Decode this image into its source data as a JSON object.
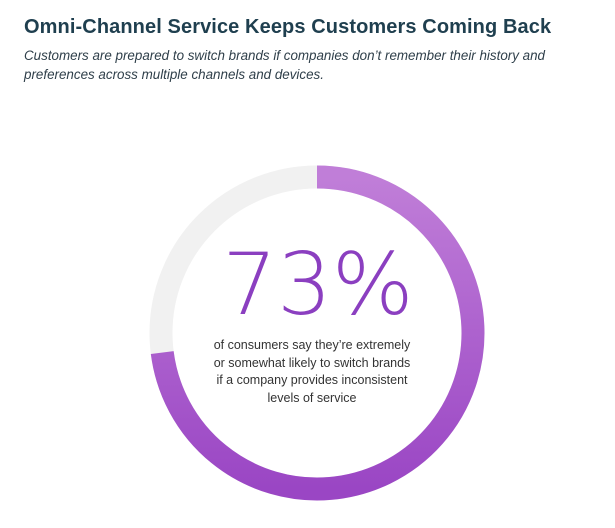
{
  "header": {
    "title": "Omni-Channel Service Keeps Customers Coming Back",
    "subtitle": "Customers are prepared to switch brands if companies don’t remember their history and preferences across multiple channels and devices."
  },
  "chart_data": {
    "type": "pie",
    "values": [
      73,
      27
    ],
    "value_label": "73%",
    "caption": "of consumers say they’re extremely or somewhat likely to switch brands if a company provides inconsistent levels of service"
  },
  "colors": {
    "accent_start": "#c07ed8",
    "accent_end": "#9a46c4",
    "track": "#f1f1f1",
    "value_text": "#8b3fc0",
    "title": "#1f3f4f"
  }
}
